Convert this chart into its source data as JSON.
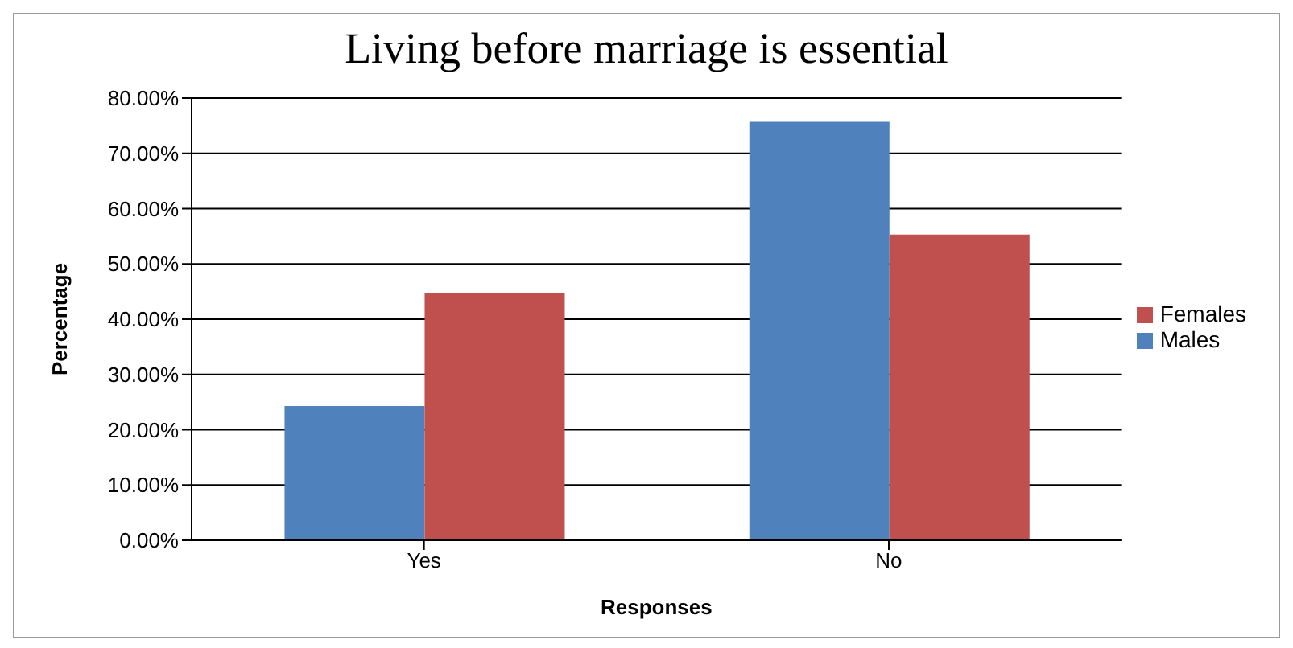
{
  "chart_data": {
    "type": "bar",
    "title": "Living before marriage is essential",
    "xlabel": "Responses",
    "ylabel": "Percentage",
    "categories": [
      "Yes",
      "No"
    ],
    "series": [
      {
        "name": "Males",
        "color": "#4f81bd",
        "values": [
          24.3,
          75.7
        ]
      },
      {
        "name": "Females",
        "color": "#c0504d",
        "values": [
          44.7,
          55.3
        ]
      }
    ],
    "ylim": [
      0,
      80
    ],
    "yticks": [
      {
        "value": 0,
        "label": "0.00%"
      },
      {
        "value": 10,
        "label": "10.00%"
      },
      {
        "value": 20,
        "label": "20.00%"
      },
      {
        "value": 30,
        "label": "30.00%"
      },
      {
        "value": 40,
        "label": "40.00%"
      },
      {
        "value": 50,
        "label": "50.00%"
      },
      {
        "value": 60,
        "label": "60.00%"
      },
      {
        "value": 70,
        "label": "70.00%"
      },
      {
        "value": 80,
        "label": "80.00%"
      }
    ],
    "grid": "y",
    "legend": "right"
  }
}
